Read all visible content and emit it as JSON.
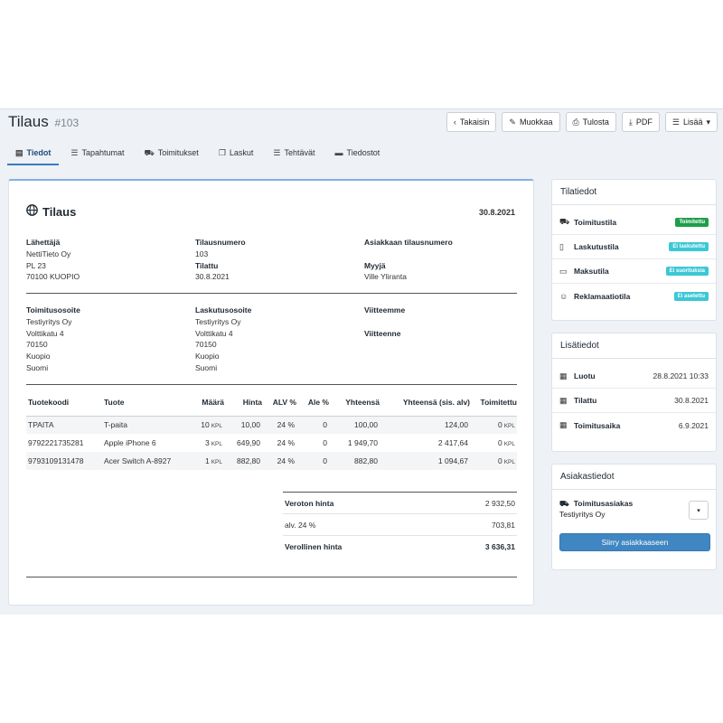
{
  "header": {
    "title": "Tilaus",
    "number": "#103"
  },
  "toolbar": {
    "back": "Takaisin",
    "edit": "Muokkaa",
    "print": "Tulosta",
    "pdf": "PDF",
    "more": "Lisää"
  },
  "tabs": [
    "Tiedot",
    "Tapahtumat",
    "Toimitukset",
    "Laskut",
    "Tehtävät",
    "Tiedostot"
  ],
  "order": {
    "title": "Tilaus",
    "date": "30.8.2021",
    "sender": {
      "label": "Lähettäjä",
      "lines": [
        "NettiTieto Oy",
        "PL 23",
        "70100 KUOPIO"
      ]
    },
    "order_number": {
      "label": "Tilausnumero",
      "value": "103"
    },
    "ordered": {
      "label": "Tilattu",
      "value": "30.8.2021"
    },
    "customer_order_number": {
      "label": "Asiakkaan tilausnumero",
      "value": ""
    },
    "seller": {
      "label": "Myyjä",
      "value": "Ville Yliranta"
    },
    "delivery_address": {
      "label": "Toimitusosoite",
      "lines": [
        "Testiyritys Oy",
        "Volttikatu 4",
        "70150",
        "Kuopio",
        "Suomi"
      ]
    },
    "billing_address": {
      "label": "Laskutusosoite",
      "lines": [
        "Testiyritys Oy",
        "Volttikatu 4",
        "70150",
        "Kuopio",
        "Suomi"
      ]
    },
    "our_reference": {
      "label": "Viitteemme",
      "value": ""
    },
    "your_reference": {
      "label": "Viitteenne",
      "value": ""
    }
  },
  "items": {
    "headers": [
      "Tuotekoodi",
      "Tuote",
      "Määrä",
      "Hinta",
      "ALV %",
      "Ale %",
      "Yhteensä",
      "Yhteensä (sis. alv)",
      "Toimitettu"
    ],
    "rows": [
      {
        "code": "TPAITA",
        "name": "T-paita",
        "qty": "10",
        "unit": "KPL",
        "price": "10,00",
        "vat": "24 %",
        "discount": "0",
        "total": "100,00",
        "total_vat": "124,00",
        "delivered": "0",
        "delivered_unit": "KPL"
      },
      {
        "code": "9792221735281",
        "name": "Apple iPhone 6",
        "qty": "3",
        "unit": "KPL",
        "price": "649,90",
        "vat": "24 %",
        "discount": "0",
        "total": "1 949,70",
        "total_vat": "2 417,64",
        "delivered": "0",
        "delivered_unit": "KPL"
      },
      {
        "code": "9793109131478",
        "name": "Acer Switch A-8927",
        "qty": "1",
        "unit": "KPL",
        "price": "882,80",
        "vat": "24 %",
        "discount": "0",
        "total": "882,80",
        "total_vat": "1 094,67",
        "delivered": "0",
        "delivered_unit": "KPL"
      }
    ]
  },
  "totals": {
    "net_label": "Veroton hinta",
    "net": "2 932,50",
    "vat_label": "alv. 24 %",
    "vat": "703,81",
    "gross_label": "Verollinen hinta",
    "gross": "3 636,31"
  },
  "status": {
    "title": "Tilatiedot",
    "rows": [
      {
        "label": "Toimitustila",
        "badge": "Toimitettu",
        "color": "#1e9e4a",
        "icon": "truck-icon"
      },
      {
        "label": "Laskutustila",
        "badge": "Ei laskutettu",
        "color": "#3cc7d6",
        "icon": "document-icon"
      },
      {
        "label": "Maksutila",
        "badge": "Ei suorituksia",
        "color": "#3cc7d6",
        "icon": "money-icon"
      },
      {
        "label": "Reklamaatiotila",
        "badge": "Ei asetettu",
        "color": "#3cc7d6",
        "icon": "smiley-icon"
      }
    ]
  },
  "extra": {
    "title": "Lisätiedot",
    "rows": [
      {
        "label": "Luotu",
        "value": "28.8.2021 10:33"
      },
      {
        "label": "Tilattu",
        "value": "30.8.2021"
      },
      {
        "label": "Toimitusaika",
        "value": "6.9.2021"
      }
    ]
  },
  "customer": {
    "title": "Asiakastiedot",
    "label": "Toimitusasiakas",
    "name": "Testiyritys Oy",
    "button": "Siirry asiakkaaseen"
  }
}
